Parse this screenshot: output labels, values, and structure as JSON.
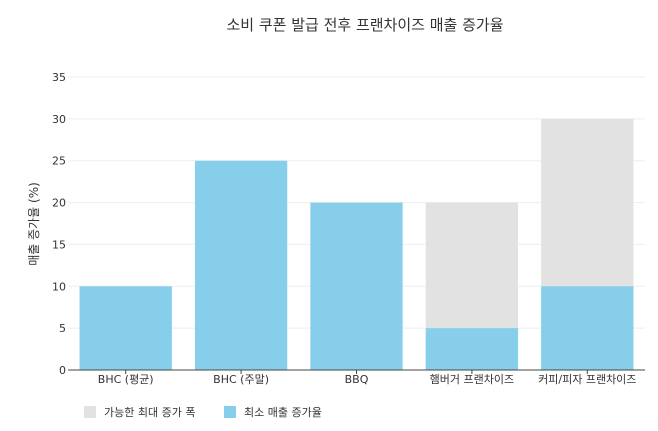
{
  "chart_data": {
    "type": "bar",
    "title": "소비 쿠폰 발급 전후 프랜차이즈 매출 증가율",
    "xlabel": "",
    "ylabel": "매출 증가율 (%)",
    "ylim": [
      0,
      35
    ],
    "yticks": [
      0,
      5,
      10,
      15,
      20,
      25,
      30,
      35
    ],
    "grid": true,
    "legend_position": "bottom-left",
    "categories": [
      "BHC (평균)",
      "BHC (주말)",
      "BBQ",
      "햄버거 프랜차이즈",
      "커피/피자 프랜차이즈"
    ],
    "series": [
      {
        "name": "가능한 최대 증가 폭",
        "color": "#e2e2e2",
        "values": [
          null,
          null,
          null,
          20,
          30
        ]
      },
      {
        "name": "최소 매출 증가율",
        "color": "#87ceeb",
        "values": [
          10,
          25,
          20,
          5,
          10
        ]
      }
    ]
  }
}
